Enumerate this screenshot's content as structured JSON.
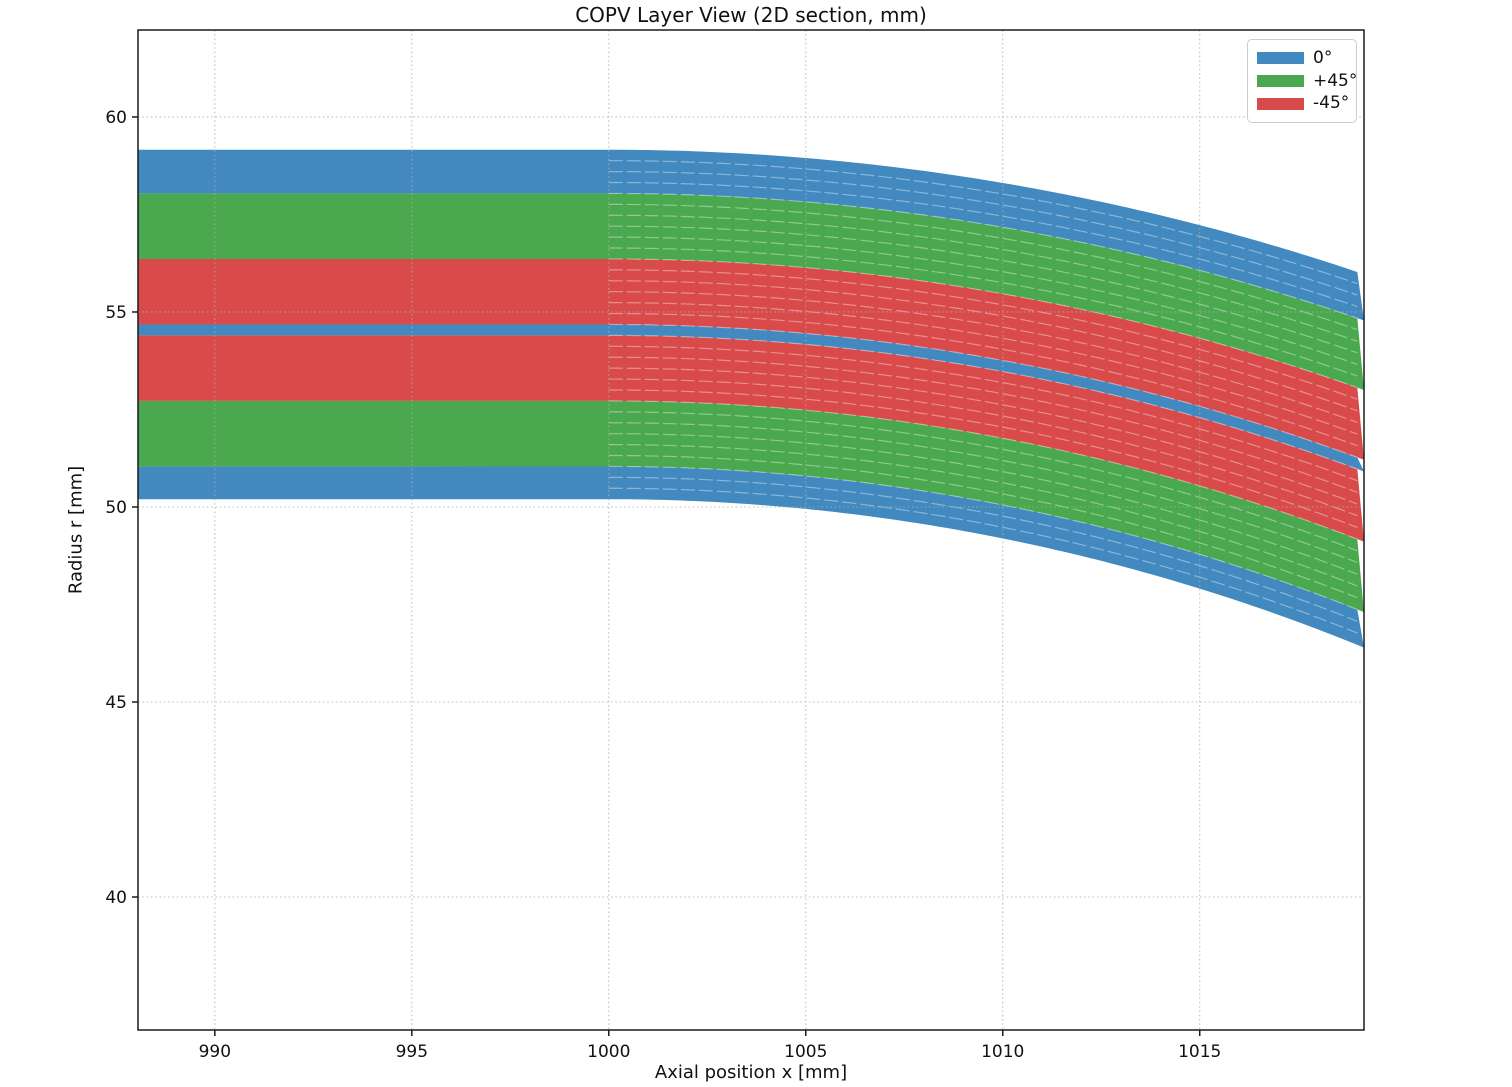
{
  "title": "COPV Layer View (2D section, mm)",
  "axes": {
    "x": {
      "label": "Axial position x [mm]",
      "ticks": [
        990,
        995,
        1000,
        1005,
        1010,
        1015
      ]
    },
    "y": {
      "label": "Radius r [mm]",
      "ticks": [
        40,
        45,
        50,
        55,
        60
      ]
    }
  },
  "legend": {
    "items": [
      {
        "label": "0°",
        "color": "#4189bf"
      },
      {
        "label": "+45°",
        "color": "#4aa84e"
      },
      {
        "label": "-45°",
        "color": "#d94a4b"
      }
    ]
  },
  "chart_data": {
    "type": "area",
    "title": "COPV Layer View (2D section, mm)",
    "xlabel": "Axial position x [mm]",
    "ylabel": "Radius r [mm]",
    "xlim": [
      988.05,
      1019.17
    ],
    "ylim": [
      36.59,
      62.23
    ],
    "x_ticks": [
      990,
      995,
      1000,
      1005,
      1010,
      1015
    ],
    "y_ticks": [
      40,
      45,
      50,
      55,
      60
    ],
    "grid": "dotted",
    "legend_position": "upper right",
    "geometry": {
      "cylinder_end_x": 1000,
      "dome_center_x": 1000,
      "dome_type": "hemispherical (concentric circular ply surfaces)",
      "inner_radius_mm": 50.2,
      "outer_radius_mm": 59.16,
      "ply_thickness_mm": 0.28,
      "ply_lines_visible_from_x": 1000
    },
    "layers": [
      {
        "angle": "0°",
        "plies": 3,
        "r_inner": 50.2,
        "r_outer": 51.04,
        "color": "#4189bf"
      },
      {
        "angle": "+45°",
        "plies": 6,
        "r_inner": 51.04,
        "r_outer": 52.72,
        "color": "#4aa84e"
      },
      {
        "angle": "-45°",
        "plies": 6,
        "r_inner": 52.72,
        "r_outer": 54.4,
        "color": "#d94a4b"
      },
      {
        "angle": "0°",
        "plies": 1,
        "r_inner": 54.4,
        "r_outer": 54.68,
        "color": "#4189bf"
      },
      {
        "angle": "-45°",
        "plies": 6,
        "r_inner": 54.68,
        "r_outer": 56.36,
        "color": "#d94a4b"
      },
      {
        "angle": "+45°",
        "plies": 6,
        "r_inner": 56.36,
        "r_outer": 58.04,
        "color": "#4aa84e"
      },
      {
        "angle": "0°",
        "plies": 4,
        "r_inner": 58.04,
        "r_outer": 59.16,
        "color": "#4189bf"
      }
    ],
    "colors": {
      "angle_0": "#4189bf",
      "angle_p45": "#4aa84e",
      "angle_m45": "#d94a4b",
      "grid": "#adadad",
      "ply_line": "rgba(255,255,255,0.38)",
      "spine": "#1a1a1a"
    }
  }
}
